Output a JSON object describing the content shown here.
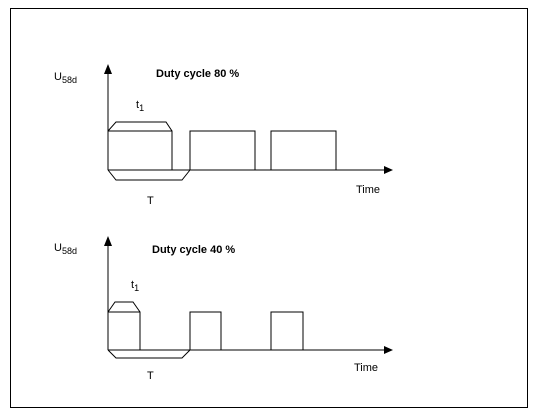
{
  "panels": [
    {
      "axis_label": {
        "symbol": "U",
        "subscript": "58d"
      },
      "title": "Duty cycle 80 %",
      "pulse_width": {
        "symbol": "t",
        "subscript": "1"
      },
      "period": "T",
      "x_axis_label": "Time"
    },
    {
      "axis_label": {
        "symbol": "U",
        "subscript": "58d"
      },
      "title": "Duty cycle 40 %",
      "pulse_width": {
        "symbol": "t",
        "subscript": "1"
      },
      "period": "T",
      "x_axis_label": "Time"
    }
  ]
}
